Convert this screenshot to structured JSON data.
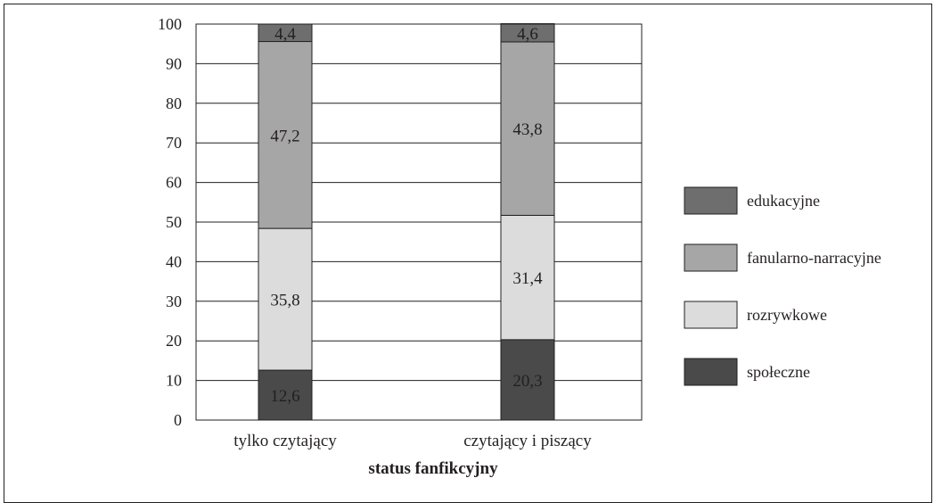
{
  "chart_data": {
    "type": "bar",
    "stacked": true,
    "categories": [
      "tylko czytający",
      "czytający i piszący"
    ],
    "series": [
      {
        "name": "społeczne",
        "values": [
          12.6,
          20.3
        ],
        "color": "#4a4a4a"
      },
      {
        "name": "rozrywkowe",
        "values": [
          35.8,
          31.4
        ],
        "color": "#dcdcdc"
      },
      {
        "name": "fanularno-narracyjne",
        "values": [
          47.2,
          43.8
        ],
        "color": "#a6a6a6"
      },
      {
        "name": "edukacyjne",
        "values": [
          4.4,
          4.6
        ],
        "color": "#6e6e6e"
      }
    ],
    "xlabel": "status fanfikcyjny",
    "ylabel": "",
    "ylim": [
      0,
      100
    ],
    "yticks": [
      0,
      10,
      20,
      30,
      40,
      50,
      60,
      70,
      80,
      90,
      100
    ],
    "grid": true,
    "legend_position": "right",
    "legend_order": [
      "edukacyjne",
      "fanularno-narracyjne",
      "rozrywkowe",
      "społeczne"
    ]
  }
}
